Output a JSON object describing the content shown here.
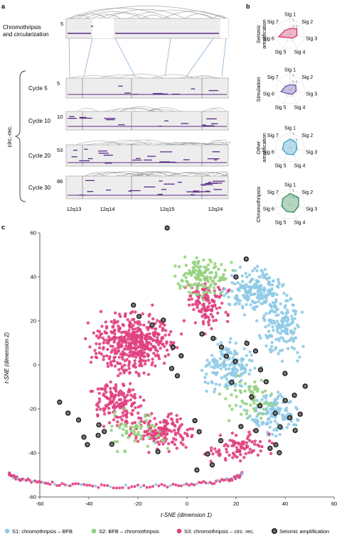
{
  "panel_a": {
    "panel_label": "a",
    "top_track": {
      "label_line1": "Chromothripsis",
      "label_line2": "and circularization",
      "copy_number": "5"
    },
    "bracket_label": "circ.-rec.",
    "cycles": [
      {
        "label": "Cycle 5",
        "copy_number": "5"
      },
      {
        "label": "Cycle 10",
        "copy_number": "10"
      },
      {
        "label": "Cycle 20",
        "copy_number": "53"
      },
      {
        "label": "Cycle 30",
        "copy_number": "86"
      }
    ],
    "bands": [
      "12q13",
      "12q14",
      "12q15",
      "12q24"
    ]
  },
  "panel_b": {
    "panel_label": "b",
    "axes": [
      "Sig 1",
      "Sig 2",
      "Sig 3",
      "Sig 4",
      "Sig 5",
      "Sig 6",
      "Sig 7"
    ],
    "tick_labels": [
      "0.5",
      "1"
    ],
    "radars": [
      {
        "title": "Seismic amplification",
        "title_line1": "Seismic",
        "title_line2": "amplification",
        "color": "#d6336c",
        "values": [
          0.35,
          0.55,
          0.45,
          0.3,
          0.25,
          0.75,
          0.4
        ]
      },
      {
        "title": "Simulation",
        "title_line1": "Simulation",
        "title_line2": "",
        "color": "#6a4fb3",
        "values": [
          0.3,
          0.45,
          0.4,
          0.35,
          0.3,
          0.6,
          0.35
        ]
      },
      {
        "title": "Other amplification",
        "title_line1": "Other",
        "title_line2": "amplification",
        "color": "#3aa0c8",
        "values": [
          0.55,
          0.5,
          0.45,
          0.5,
          0.45,
          0.5,
          0.5
        ]
      },
      {
        "title": "Chromothripsis",
        "title_line1": "Chromothripsis",
        "title_line2": "",
        "color": "#2e8b57",
        "values": [
          0.7,
          0.7,
          0.55,
          0.55,
          0.5,
          0.55,
          0.6
        ]
      }
    ]
  },
  "chart_data": {
    "panel_label": "c",
    "type": "scatter",
    "xlabel": "t-SNE (dimension 1)",
    "ylabel": "t-SNE (dimension 2)",
    "xlim": [
      -60,
      60
    ],
    "ylim": [
      -60,
      60
    ],
    "xticks": [
      -60,
      -40,
      -20,
      0,
      20,
      40,
      60
    ],
    "yticks": [
      -60,
      -40,
      -20,
      0,
      20,
      40,
      60
    ],
    "series": [
      {
        "name": "S1: chromothripsis – BFB",
        "color": "#8ecae6"
      },
      {
        "name": "S2: BFB – chromothripsis",
        "color": "#95d17e"
      },
      {
        "name": "S3: chromothripsis – circ. rec.",
        "color": "#e0407f"
      },
      {
        "name": "Seismic amplification",
        "color": "#555555"
      }
    ],
    "legend_placement": "bottom"
  }
}
